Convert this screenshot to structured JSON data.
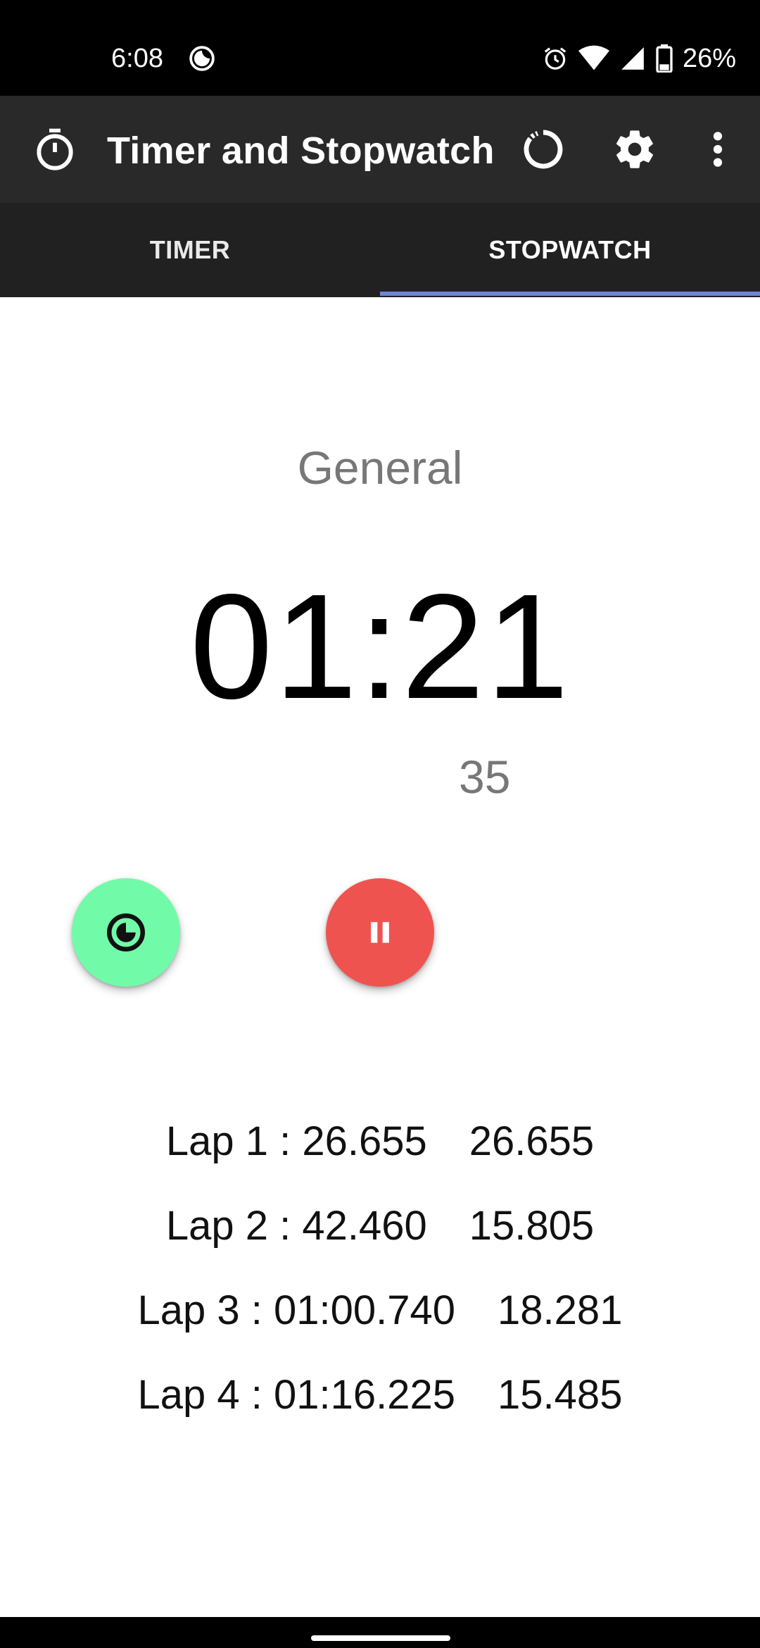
{
  "status_bar": {
    "time": "6:08",
    "battery_percent": "26%",
    "icons": [
      "moon-icon",
      "alarm-icon",
      "wifi-icon",
      "signal-icon",
      "battery-icon"
    ]
  },
  "app_bar": {
    "title": "Timer and Stopwatch",
    "icons": {
      "app": "stopwatch-icon",
      "reset": "reset-circle-icon",
      "settings": "gear-icon",
      "more": "more-vert-icon"
    }
  },
  "tabs": [
    {
      "label": "TIMER",
      "selected": false
    },
    {
      "label": "STOPWATCH",
      "selected": true
    }
  ],
  "stopwatch": {
    "category": "General",
    "time": "01:21",
    "fraction": "35"
  },
  "laps": [
    {
      "label": "Lap 1 : 26.655",
      "split": "26.655"
    },
    {
      "label": "Lap 2 : 42.460",
      "split": "15.805"
    },
    {
      "label": "Lap 3 : 01:00.740",
      "split": "18.281"
    },
    {
      "label": "Lap 4 : 01:16.225",
      "split": "15.485"
    }
  ],
  "colors": {
    "status_bar": "#000000",
    "app_bar": "#292929",
    "tab_bar": "#212121",
    "tab_indicator": "#6f86d6",
    "lap_button": "#71fba9",
    "pause_button": "#ef5350"
  }
}
